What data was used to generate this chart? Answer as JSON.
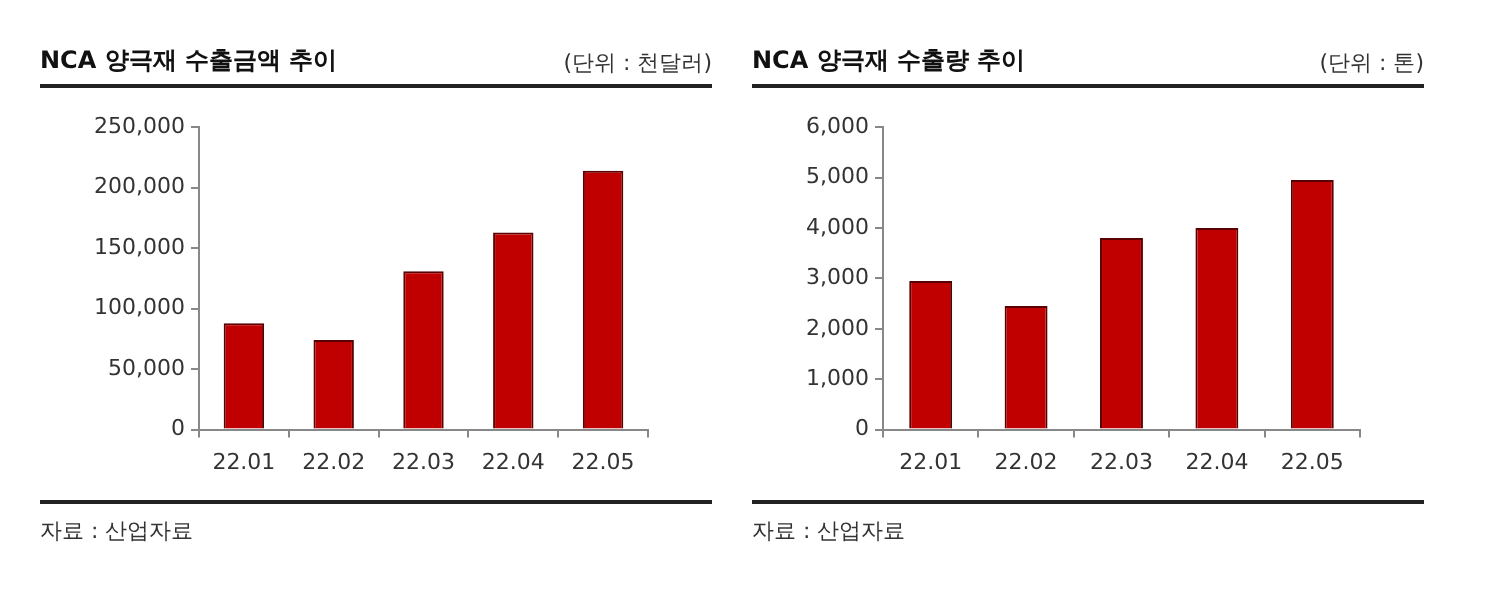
{
  "chart_data": [
    {
      "type": "bar",
      "title": "NCA 양극재 수출금액 추이",
      "subtitle": "(단위 : 천달러)",
      "categories": [
        "22.01",
        "22.02",
        "22.03",
        "22.04",
        "22.05"
      ],
      "values": [
        88000,
        74000,
        131000,
        163000,
        214000
      ],
      "color": "#c00000",
      "ylim": [
        0,
        250000
      ],
      "yticks": [
        0,
        {
          "value": 50000,
          "label": "50,000"
        },
        {
          "value": 100000,
          "label": "100,000"
        },
        {
          "value": 150000,
          "label": "150,000"
        },
        {
          "value": 200000,
          "label": "200,000"
        },
        {
          "value": 250000,
          "label": "250,000"
        }
      ],
      "grid": false,
      "legend": false,
      "annotations": [
        "자료 : 산업자료"
      ]
    },
    {
      "type": "bar",
      "title": "NCA 양극재 수출량 추이",
      "subtitle": "(단위 : 톤)",
      "categories": [
        "22.01",
        "22.02",
        "22.03",
        "22.04",
        "22.05"
      ],
      "values": [
        2950,
        2450,
        3800,
        4000,
        4950
      ],
      "color": "#c00000",
      "ylim": [
        0,
        6000
      ],
      "yticks": [
        0,
        {
          "value": 1000,
          "label": "1,000"
        },
        {
          "value": 2000,
          "label": "2,000"
        },
        {
          "value": 3000,
          "label": "3,000"
        },
        {
          "value": 4000,
          "label": "4,000"
        },
        {
          "value": 5000,
          "label": "5,000"
        },
        {
          "value": 6000,
          "label": "6,000"
        }
      ],
      "grid": false,
      "legend": false,
      "annotations": [
        "자료 : 산업자료"
      ]
    }
  ]
}
